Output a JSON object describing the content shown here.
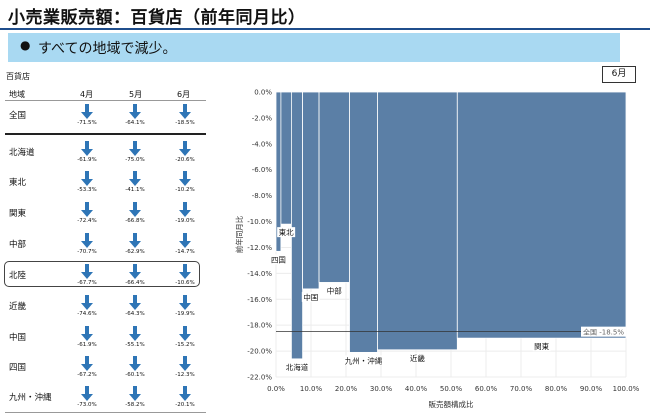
{
  "title": "小売業販売額：百貨店（前年同月比）",
  "banner": {
    "bullet": "●",
    "text": "すべての地域で減少。"
  },
  "table": {
    "caption": "百貨店",
    "headers": [
      "地域",
      "4月",
      "5月",
      "6月"
    ],
    "rows": [
      {
        "region": "全国",
        "values": [
          "-71.5%",
          "-64.1%",
          "-18.5%"
        ]
      },
      {
        "region": "北海道",
        "values": [
          "-61.9%",
          "-75.0%",
          "-20.6%"
        ]
      },
      {
        "region": "東北",
        "values": [
          "-53.3%",
          "-41.1%",
          "-10.2%"
        ]
      },
      {
        "region": "関東",
        "values": [
          "-72.4%",
          "-66.8%",
          "-19.0%"
        ]
      },
      {
        "region": "中部",
        "values": [
          "-70.7%",
          "-62.9%",
          "-14.7%"
        ]
      },
      {
        "region": "北陸",
        "values": [
          "-67.7%",
          "-66.4%",
          "-10.6%"
        ]
      },
      {
        "region": "近畿",
        "values": [
          "-74.6%",
          "-64.3%",
          "-19.9%"
        ]
      },
      {
        "region": "中国",
        "values": [
          "-61.9%",
          "-55.1%",
          "-15.2%"
        ]
      },
      {
        "region": "四国",
        "values": [
          "-67.2%",
          "-60.1%",
          "-12.3%"
        ]
      },
      {
        "region": "九州・沖縄",
        "values": [
          "-73.0%",
          "-58.2%",
          "-20.1%"
        ]
      }
    ],
    "highlighted_region": "北陸",
    "arrow_icon": "down-arrow-icon",
    "arrow_color": "#2e75b6"
  },
  "month_badge": "6月",
  "chart_data": {
    "type": "bar",
    "variant": "variable-width (marimekko)",
    "xlabel": "販売額構成比",
    "ylabel": "前年同月比",
    "xlim": [
      0,
      100
    ],
    "ylim": [
      -22,
      0
    ],
    "xticks": [
      "0.0%",
      "10.0%",
      "20.0%",
      "30.0%",
      "40.0%",
      "50.0%",
      "60.0%",
      "70.0%",
      "80.0%",
      "90.0%",
      "100.0%"
    ],
    "yticks": [
      "0.0%",
      "-2.0%",
      "-4.0%",
      "-6.0%",
      "-8.0%",
      "-10.0%",
      "-12.0%",
      "-14.0%",
      "-16.0%",
      "-18.0%",
      "-20.0%",
      "-22.0%"
    ],
    "bar_color": "#5b7fa6",
    "bars": [
      {
        "label": "四国",
        "x0": 0.0,
        "x1": 1.4,
        "value": -12.3
      },
      {
        "label": "東北",
        "x0": 1.4,
        "x1": 4.4,
        "value": -10.2
      },
      {
        "label": "北海道",
        "x0": 4.4,
        "x1": 7.6,
        "value": -20.6
      },
      {
        "label": "中国",
        "x0": 7.6,
        "x1": 12.3,
        "value": -15.2
      },
      {
        "label": "中部",
        "x0": 12.3,
        "x1": 21.0,
        "value": -14.7
      },
      {
        "label": "九州・沖縄",
        "x0": 21.0,
        "x1": 29.0,
        "value": -20.1
      },
      {
        "label": "近畿",
        "x0": 29.0,
        "x1": 51.8,
        "value": -19.9
      },
      {
        "label": "関東",
        "x0": 51.8,
        "x1": 100.0,
        "value": -19.0
      }
    ],
    "reference_line": {
      "label": "全国",
      "value": -18.5,
      "text": "-18.5%"
    },
    "grid": true
  }
}
